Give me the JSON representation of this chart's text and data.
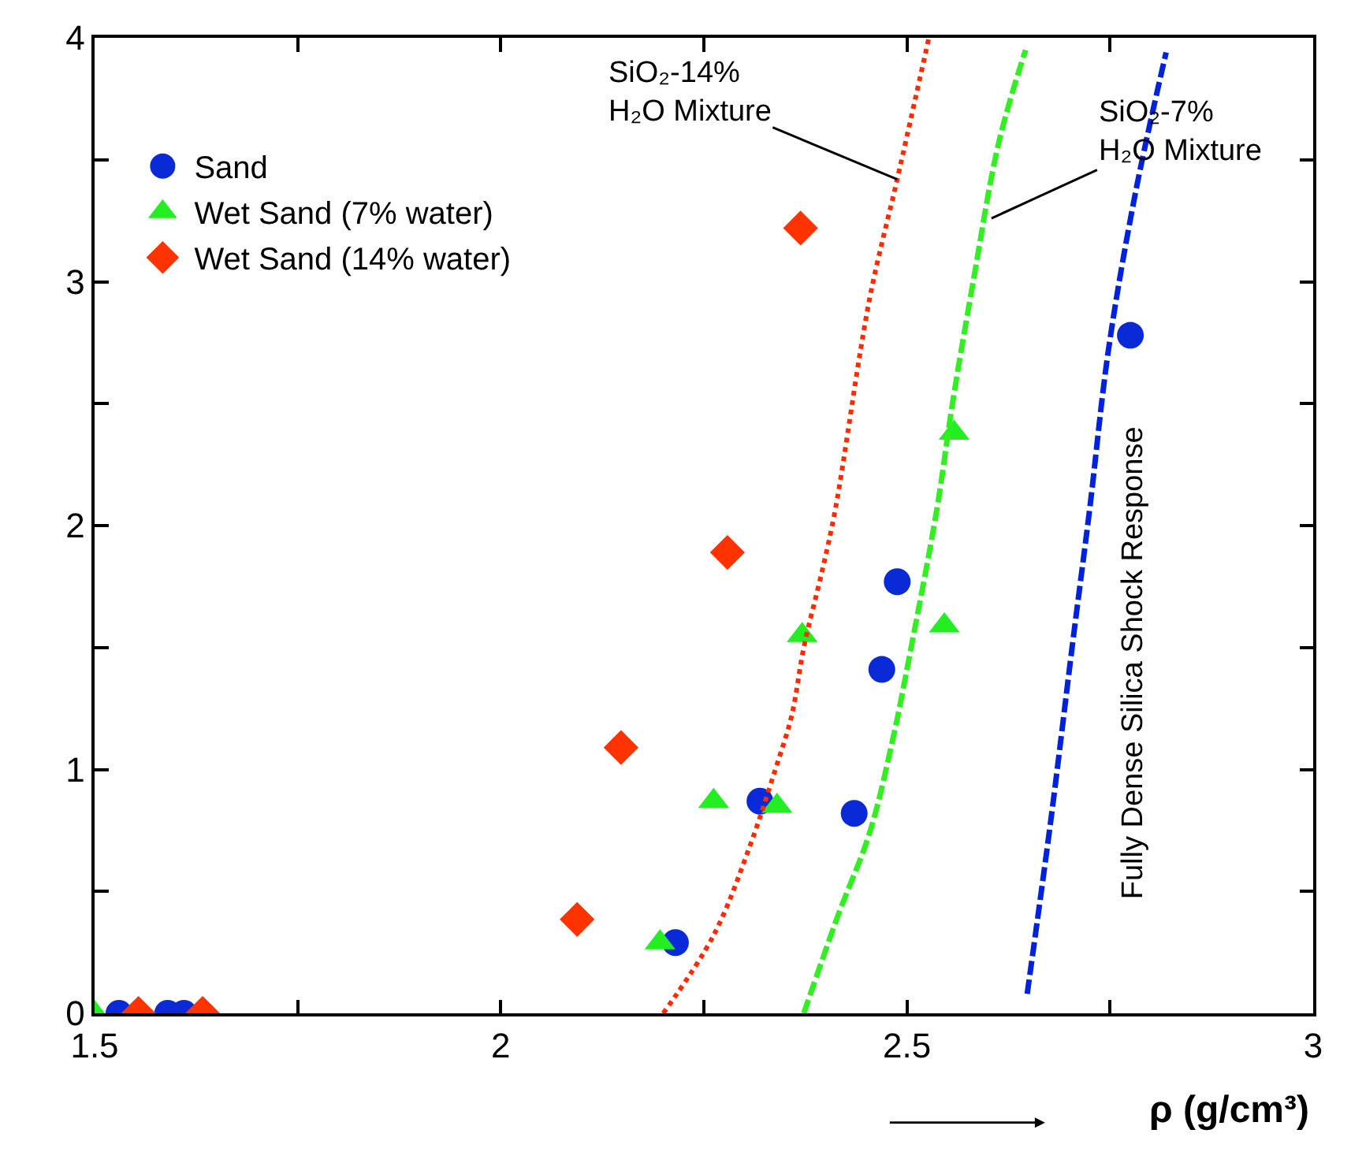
{
  "chart_data": {
    "type": "scatter",
    "xlabel": "ρ (g/cm³)",
    "xlim": [
      1.5,
      3
    ],
    "ylim": [
      0,
      4
    ],
    "xticks": [
      1.5,
      {
        "value": 1.75,
        "label": null
      },
      2,
      {
        "value": 2.25,
        "label": null
      },
      2.5,
      {
        "value": 2.75,
        "label": null
      },
      3
    ],
    "yticks": [
      0,
      {
        "value": 0.5,
        "label": null
      },
      1,
      {
        "value": 1.5,
        "label": null
      },
      2,
      {
        "value": 2.5,
        "label": null
      },
      3,
      {
        "value": 3.5,
        "label": null
      },
      4
    ],
    "legend": "top left",
    "series": [
      {
        "name": "Sand",
        "marker": "circle",
        "color": "#0a2ad8",
        "x": [
          1.53,
          1.59,
          1.61,
          2.215,
          2.319,
          2.435,
          2.469,
          2.488,
          2.775
        ],
        "values": [
          0,
          0,
          0,
          0.29,
          0.87,
          0.82,
          1.41,
          1.77,
          2.78
        ]
      },
      {
        "name": "Wet Sand (7% water)",
        "marker": "triangle",
        "color": "#22ee22",
        "x": [
          1.5,
          2.196,
          2.262,
          2.34,
          2.371,
          2.546,
          2.558
        ],
        "values": [
          0,
          0.29,
          0.87,
          0.85,
          1.55,
          1.59,
          2.38
        ]
      },
      {
        "name": "Wet Sand (14% water)",
        "marker": "diamond",
        "color": "#ff3300",
        "x": [
          1.554,
          1.633,
          2.094,
          2.148,
          2.279,
          2.369
        ],
        "values": [
          0,
          0,
          0.385,
          1.09,
          1.89,
          3.22
        ]
      },
      {
        "type": "line",
        "line_style": "dotted",
        "color": "#ff2a00",
        "x": [
          2.2,
          2.262,
          2.306,
          2.338,
          2.358,
          2.373,
          2.396,
          2.412,
          2.454,
          2.488,
          2.527
        ],
        "values": [
          0,
          0.32,
          0.68,
          1.0,
          1.22,
          1.5,
          1.82,
          2.07,
          2.93,
          3.42,
          4.0
        ]
      },
      {
        "type": "line",
        "line_style": "dashed",
        "color": "#33ee22",
        "x": [
          2.373,
          2.415,
          2.454,
          2.483,
          2.504,
          2.537,
          2.556,
          2.581,
          2.613,
          2.646
        ],
        "values": [
          0,
          0.4,
          0.74,
          1.13,
          1.48,
          2.07,
          2.5,
          2.99,
          3.57,
          3.95
        ]
      },
      {
        "type": "line",
        "line_style": "dashed",
        "color": "#0022dd",
        "x": [
          2.648,
          2.677,
          2.704,
          2.725,
          2.748,
          2.781,
          2.819
        ],
        "values": [
          0.08,
          0.79,
          1.52,
          2.07,
          2.72,
          3.36,
          3.94
        ]
      }
    ],
    "annotations": [
      {
        "text": "SiO₂-14%\nH₂O Mixture",
        "x": 2.488,
        "y": 3.42
      },
      {
        "text": "SiO₂-7%\nH₂O Mixture",
        "x": 2.604,
        "y": 3.26
      },
      "Fully Dense Silica Shock Response"
    ]
  }
}
